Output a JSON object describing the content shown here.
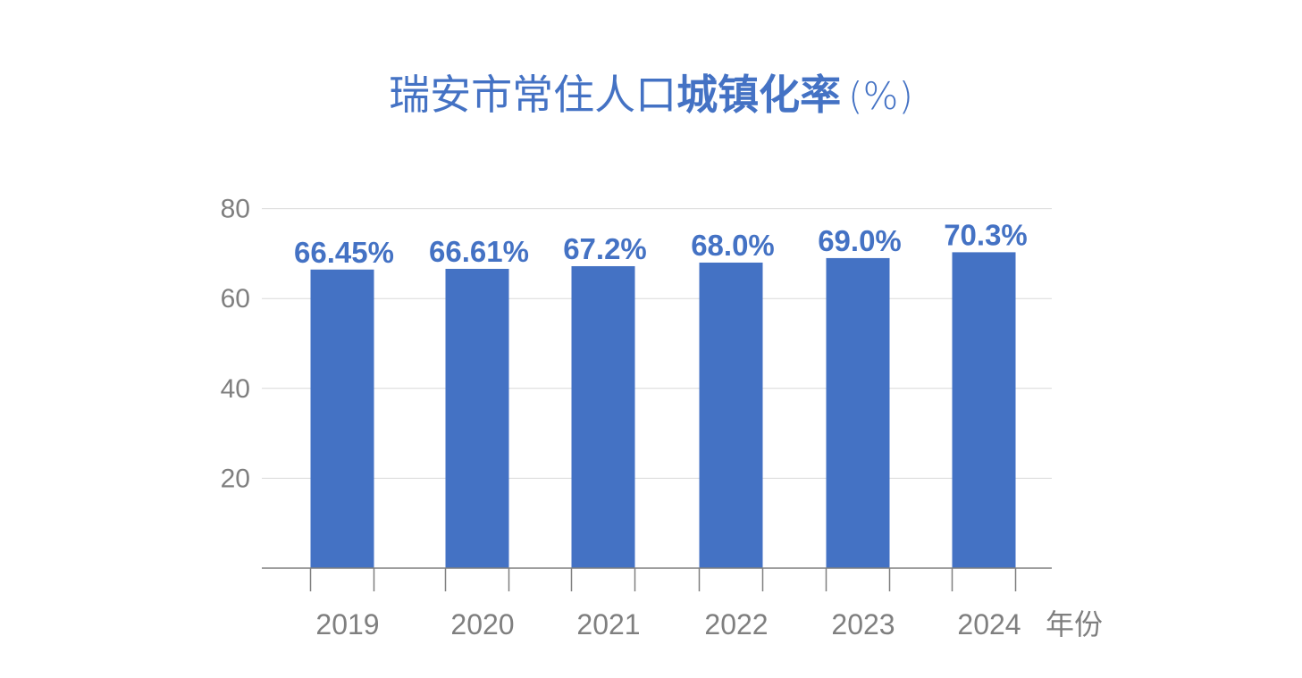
{
  "title": {
    "part1": "瑞安市常住人口",
    "part2": "城镇化率",
    "part3": "(%)"
  },
  "chart_data": {
    "type": "bar",
    "title": "瑞安市常住人口城镇化率 (%)",
    "xlabel": "年份",
    "ylabel": "",
    "categories": [
      "2019",
      "2020",
      "2021",
      "2022",
      "2023",
      "2024"
    ],
    "values": [
      66.45,
      66.61,
      67.2,
      68.0,
      69.0,
      70.3
    ],
    "data_labels": [
      "66.45%",
      "66.61%",
      "67.2%",
      "68.0%",
      "69.0%",
      "70.3%"
    ],
    "yticks": [
      20,
      40,
      60,
      80
    ],
    "ylim": [
      0,
      80
    ],
    "grid": true,
    "bar_color": "#4472c4"
  }
}
